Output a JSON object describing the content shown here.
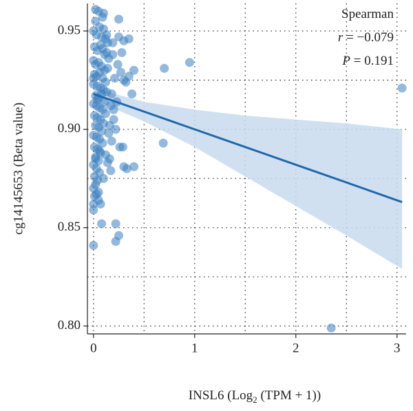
{
  "chart_data": {
    "type": "scatter",
    "ylabel": "cg14145653 (Beta value)",
    "xlabel": [
      "INSL6 (Log",
      "2",
      " (TPM + 1))"
    ],
    "annotations": [
      {
        "text": "Spearman"
      },
      {
        "symbol": "r",
        "text": " = −0.079"
      },
      {
        "symbol": "P",
        "text": " = 0.191"
      }
    ],
    "color": "#3d7fc0",
    "line_color": "#1f67aa",
    "band_color": "#c9dbee",
    "xlim": [
      -0.06,
      3.09
    ],
    "ylim": [
      0.796,
      0.964
    ],
    "xticks": [
      0,
      1,
      2,
      3
    ],
    "yticks": [
      {
        "value": 0.8,
        "label": "0.80"
      },
      0.85,
      {
        "value": 0.9,
        "label": "0.90"
      },
      0.95
    ],
    "xminorticks": [
      0.5,
      1.5,
      2.5
    ],
    "yminorticks": [
      0.825,
      0.875,
      0.925
    ],
    "grid": true,
    "fit": {
      "x": [
        0,
        0.5,
        1,
        1.5,
        2,
        2.5,
        3.05
      ],
      "y": [
        0.918,
        0.909,
        0.9,
        0.891,
        0.882,
        0.873,
        0.863
      ],
      "upper": [
        0.921,
        0.914,
        0.91,
        0.907,
        0.905,
        0.903,
        0.9
      ],
      "lower": [
        0.915,
        0.904,
        0.891,
        0.876,
        0.861,
        0.846,
        0.829
      ]
    },
    "x": [
      0.7,
      0.95,
      0.69,
      3.05,
      2.35,
      0.25,
      0.22,
      0.08,
      0.0,
      0.0,
      0.22,
      0.05,
      0.3,
      0.4,
      0.33,
      0.26,
      0.29,
      0.38,
      0.35,
      0.3,
      0.25,
      0.25,
      0.1,
      0.02,
      0.05,
      0.4,
      0.35,
      0.3,
      0.17,
      0.16,
      0.2,
      0.18,
      0.22,
      0.02,
      0.0,
      0.03,
      0.06,
      0.08,
      0.1,
      0.12,
      0.14,
      0.01,
      0.04,
      0.07,
      0.09,
      0.11,
      0.13,
      0.15,
      0.0,
      0.02,
      0.05,
      0.08,
      0.11,
      0.14,
      0.01,
      0.03,
      0.06,
      0.09,
      0.12,
      0.0,
      0.04,
      0.07,
      0.1,
      0.13,
      0.02,
      0.05,
      0.08,
      0.11,
      0.0,
      0.03,
      0.06,
      0.09,
      0.12,
      0.01,
      0.04,
      0.07,
      0.1,
      0.02,
      0.05,
      0.08,
      0.0,
      0.03,
      0.06,
      0.09,
      0.01,
      0.04,
      0.07,
      0.02,
      0.05,
      0.0,
      0.03,
      0.06,
      0.01,
      0.04,
      0.02,
      0.0,
      0.03,
      0.05,
      0.01,
      0.07,
      0.19,
      0.21,
      0.24,
      0.16,
      0.18,
      0.27,
      0.23,
      0.2,
      0.17,
      0.15,
      0.28,
      0.32,
      0.12,
      0.14,
      0.1,
      0.0,
      0.02,
      0.06,
      0.0,
      0.04,
      0.13,
      0.19,
      0.09
    ],
    "y": [
      0.931,
      0.934,
      0.893,
      0.921,
      0.799,
      0.846,
      0.843,
      0.852,
      0.841,
      0.859,
      0.852,
      0.868,
      0.881,
      0.881,
      0.88,
      0.891,
      0.891,
      0.918,
      0.946,
      0.945,
      0.947,
      0.956,
      0.959,
      0.961,
      0.96,
      0.93,
      0.927,
      0.925,
      0.879,
      0.885,
      0.91,
      0.918,
      0.9,
      0.955,
      0.95,
      0.948,
      0.952,
      0.947,
      0.951,
      0.946,
      0.944,
      0.942,
      0.94,
      0.943,
      0.941,
      0.938,
      0.939,
      0.936,
      0.935,
      0.933,
      0.934,
      0.932,
      0.93,
      0.931,
      0.928,
      0.927,
      0.929,
      0.926,
      0.924,
      0.923,
      0.922,
      0.921,
      0.92,
      0.919,
      0.917,
      0.916,
      0.918,
      0.914,
      0.913,
      0.912,
      0.911,
      0.91,
      0.908,
      0.907,
      0.906,
      0.905,
      0.903,
      0.902,
      0.901,
      0.899,
      0.897,
      0.896,
      0.895,
      0.893,
      0.891,
      0.89,
      0.888,
      0.886,
      0.884,
      0.882,
      0.88,
      0.878,
      0.876,
      0.874,
      0.872,
      0.87,
      0.867,
      0.864,
      0.866,
      0.862,
      0.938,
      0.926,
      0.933,
      0.902,
      0.894,
      0.929,
      0.914,
      0.905,
      0.912,
      0.898,
      0.939,
      0.924,
      0.887,
      0.883,
      0.875,
      0.862,
      0.885,
      0.889,
      0.926,
      0.915,
      0.948,
      0.944,
      0.957
    ]
  }
}
